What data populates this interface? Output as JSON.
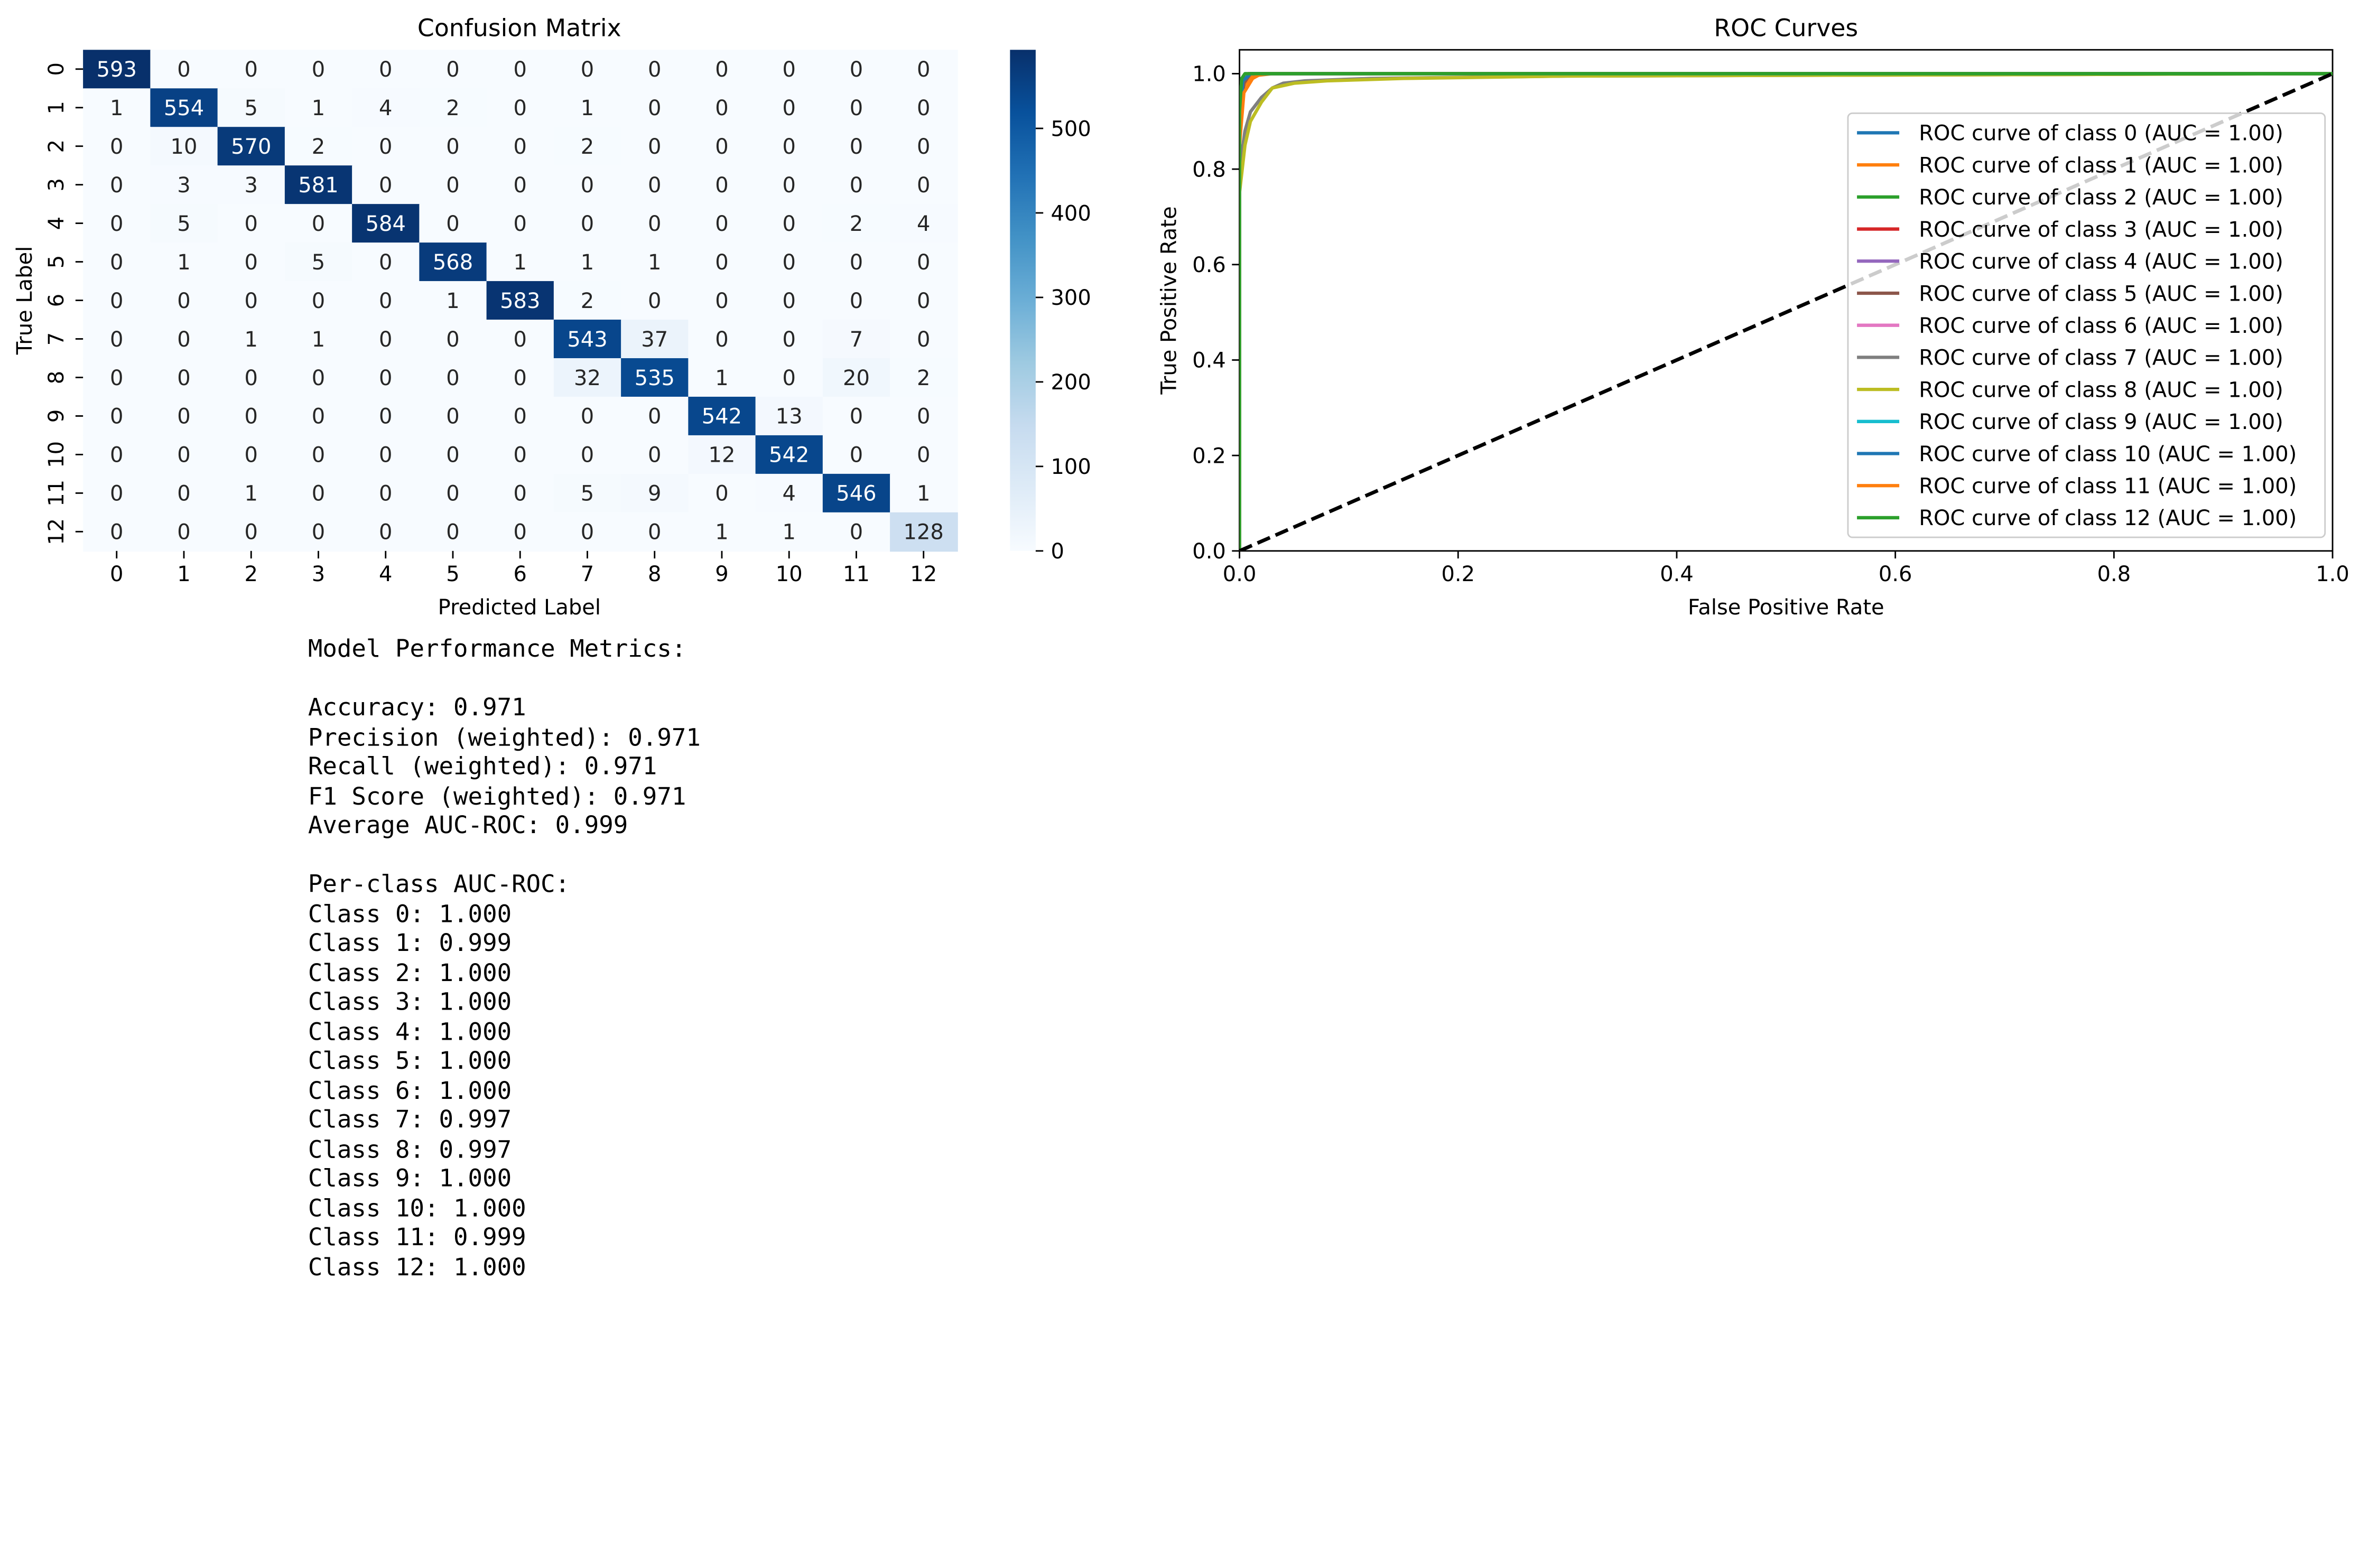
{
  "charts": {
    "confusion": {
      "title": "Confusion Matrix",
      "xlabel": "Predicted Label",
      "ylabel": "True Label",
      "labels": [
        "0",
        "1",
        "2",
        "3",
        "4",
        "5",
        "6",
        "7",
        "8",
        "9",
        "10",
        "11",
        "12"
      ],
      "colorbar_ticks": [
        "0",
        "100",
        "200",
        "300",
        "400",
        "500"
      ]
    },
    "roc": {
      "title": "ROC Curves",
      "xlabel": "False Positive Rate",
      "ylabel": "True Positive Rate",
      "x_ticks": [
        "0.0",
        "0.2",
        "0.4",
        "0.6",
        "0.8",
        "1.0"
      ],
      "y_ticks": [
        "0.0",
        "0.2",
        "0.4",
        "0.6",
        "0.8",
        "1.0"
      ]
    }
  },
  "chart_data": [
    {
      "type": "heatmap",
      "title": "Confusion Matrix",
      "xlabel": "Predicted Label",
      "ylabel": "True Label",
      "row_labels": [
        "0",
        "1",
        "2",
        "3",
        "4",
        "5",
        "6",
        "7",
        "8",
        "9",
        "10",
        "11",
        "12"
      ],
      "col_labels": [
        "0",
        "1",
        "2",
        "3",
        "4",
        "5",
        "6",
        "7",
        "8",
        "9",
        "10",
        "11",
        "12"
      ],
      "values": [
        [
          593,
          0,
          0,
          0,
          0,
          0,
          0,
          0,
          0,
          0,
          0,
          0,
          0
        ],
        [
          1,
          554,
          5,
          1,
          4,
          2,
          0,
          1,
          0,
          0,
          0,
          0,
          0
        ],
        [
          0,
          10,
          570,
          2,
          0,
          0,
          0,
          2,
          0,
          0,
          0,
          0,
          0
        ],
        [
          0,
          3,
          3,
          581,
          0,
          0,
          0,
          0,
          0,
          0,
          0,
          0,
          0
        ],
        [
          0,
          5,
          0,
          0,
          584,
          0,
          0,
          0,
          0,
          0,
          0,
          2,
          4
        ],
        [
          0,
          1,
          0,
          5,
          0,
          568,
          1,
          1,
          1,
          0,
          0,
          0,
          0
        ],
        [
          0,
          0,
          0,
          0,
          0,
          1,
          583,
          2,
          0,
          0,
          0,
          0,
          0
        ],
        [
          0,
          0,
          1,
          1,
          0,
          0,
          0,
          543,
          37,
          0,
          0,
          7,
          0
        ],
        [
          0,
          0,
          0,
          0,
          0,
          0,
          0,
          32,
          535,
          1,
          0,
          20,
          2
        ],
        [
          0,
          0,
          0,
          0,
          0,
          0,
          0,
          0,
          0,
          542,
          13,
          0,
          0
        ],
        [
          0,
          0,
          0,
          0,
          0,
          0,
          0,
          0,
          0,
          12,
          542,
          0,
          0
        ],
        [
          0,
          0,
          1,
          0,
          0,
          0,
          0,
          5,
          9,
          0,
          4,
          546,
          1
        ],
        [
          0,
          0,
          0,
          0,
          0,
          0,
          0,
          0,
          0,
          1,
          1,
          0,
          128
        ]
      ],
      "colormap": "Blues",
      "vmin": 0,
      "vmax": 593,
      "colorbar_ticks": [
        0,
        100,
        200,
        300,
        400,
        500
      ]
    },
    {
      "type": "line",
      "title": "ROC Curves",
      "xlabel": "False Positive Rate",
      "ylabel": "True Positive Rate",
      "xlim": [
        0.0,
        1.0
      ],
      "ylim": [
        0.0,
        1.05
      ],
      "legend_position": "center-right",
      "series": [
        {
          "name": "ROC curve of class 0 (AUC = 1.00)",
          "color": "#1f77b4",
          "x": [
            0,
            0,
            0.002,
            0.01,
            1
          ],
          "y": [
            0,
            0.9,
            0.99,
            1.0,
            1.0
          ]
        },
        {
          "name": "ROC curve of class 1 (AUC = 1.00)",
          "color": "#ff7f0e",
          "x": [
            0,
            0,
            0.003,
            0.01,
            0.03,
            1
          ],
          "y": [
            0,
            0.85,
            0.97,
            0.995,
            1.0,
            1.0
          ]
        },
        {
          "name": "ROC curve of class 2 (AUC = 1.00)",
          "color": "#2ca02c",
          "x": [
            0,
            0,
            0.003,
            0.01,
            1
          ],
          "y": [
            0,
            0.88,
            0.98,
            1.0,
            1.0
          ]
        },
        {
          "name": "ROC curve of class 3 (AUC = 1.00)",
          "color": "#d62728",
          "x": [
            0,
            0,
            0.003,
            0.008,
            1
          ],
          "y": [
            0,
            0.9,
            0.99,
            1.0,
            1.0
          ]
        },
        {
          "name": "ROC curve of class 4 (AUC = 1.00)",
          "color": "#9467bd",
          "x": [
            0,
            0,
            0.003,
            0.01,
            1
          ],
          "y": [
            0,
            0.88,
            0.985,
            1.0,
            1.0
          ]
        },
        {
          "name": "ROC curve of class 5 (AUC = 1.00)",
          "color": "#8c564b",
          "x": [
            0,
            0,
            0.004,
            0.01,
            1
          ],
          "y": [
            0,
            0.88,
            0.98,
            1.0,
            1.0
          ]
        },
        {
          "name": "ROC curve of class 6 (AUC = 1.00)",
          "color": "#e377c2",
          "x": [
            0,
            0,
            0.002,
            0.008,
            1
          ],
          "y": [
            0,
            0.9,
            0.99,
            1.0,
            1.0
          ]
        },
        {
          "name": "ROC curve of class 7 (AUC = 1.00)",
          "color": "#7f7f7f",
          "x": [
            0,
            0,
            0.005,
            0.01,
            0.02,
            0.03,
            0.04,
            0.06,
            0.12,
            0.3,
            1
          ],
          "y": [
            0,
            0.8,
            0.88,
            0.92,
            0.95,
            0.97,
            0.98,
            0.985,
            0.99,
            0.995,
            1.0
          ]
        },
        {
          "name": "ROC curve of class 8 (AUC = 1.00)",
          "color": "#bcbd22",
          "x": [
            0,
            0,
            0.005,
            0.01,
            0.02,
            0.03,
            0.05,
            0.08,
            0.15,
            0.3,
            1
          ],
          "y": [
            0,
            0.75,
            0.85,
            0.9,
            0.94,
            0.97,
            0.98,
            0.985,
            0.99,
            0.995,
            1.0
          ]
        },
        {
          "name": "ROC curve of class 9 (AUC = 1.00)",
          "color": "#17becf",
          "x": [
            0,
            0,
            0.003,
            0.01,
            1
          ],
          "y": [
            0,
            0.9,
            0.985,
            1.0,
            1.0
          ]
        },
        {
          "name": "ROC curve of class 10 (AUC = 1.00)",
          "color": "#1f77b4",
          "x": [
            0,
            0,
            0.003,
            0.01,
            1
          ],
          "y": [
            0,
            0.9,
            0.985,
            1.0,
            1.0
          ]
        },
        {
          "name": "ROC curve of class 11 (AUC = 1.00)",
          "color": "#ff7f0e",
          "x": [
            0,
            0,
            0.004,
            0.012,
            0.02,
            1
          ],
          "y": [
            0,
            0.85,
            0.96,
            0.99,
            1.0,
            1.0
          ]
        },
        {
          "name": "ROC curve of class 12 (AUC = 1.00)",
          "color": "#2ca02c",
          "x": [
            0,
            0,
            0.002,
            0.005,
            1
          ],
          "y": [
            0,
            0.92,
            0.99,
            1.0,
            1.0
          ]
        }
      ],
      "reference_line": {
        "x": [
          0,
          1
        ],
        "y": [
          0,
          1
        ],
        "color": "#000000",
        "style": "dashed"
      }
    }
  ],
  "metrics": {
    "heading": "Model Performance Metrics:",
    "overall": [
      "Accuracy: 0.971",
      "Precision (weighted): 0.971",
      "Recall (weighted): 0.971",
      "F1 Score (weighted): 0.971",
      "Average AUC-ROC: 0.999"
    ],
    "per_class_heading": "Per-class AUC-ROC:",
    "per_class": [
      "Class 0: 1.000",
      "Class 1: 0.999",
      "Class 2: 1.000",
      "Class 3: 1.000",
      "Class 4: 1.000",
      "Class 5: 1.000",
      "Class 6: 1.000",
      "Class 7: 0.997",
      "Class 8: 0.997",
      "Class 9: 1.000",
      "Class 10: 1.000",
      "Class 11: 0.999",
      "Class 12: 1.000"
    ]
  }
}
